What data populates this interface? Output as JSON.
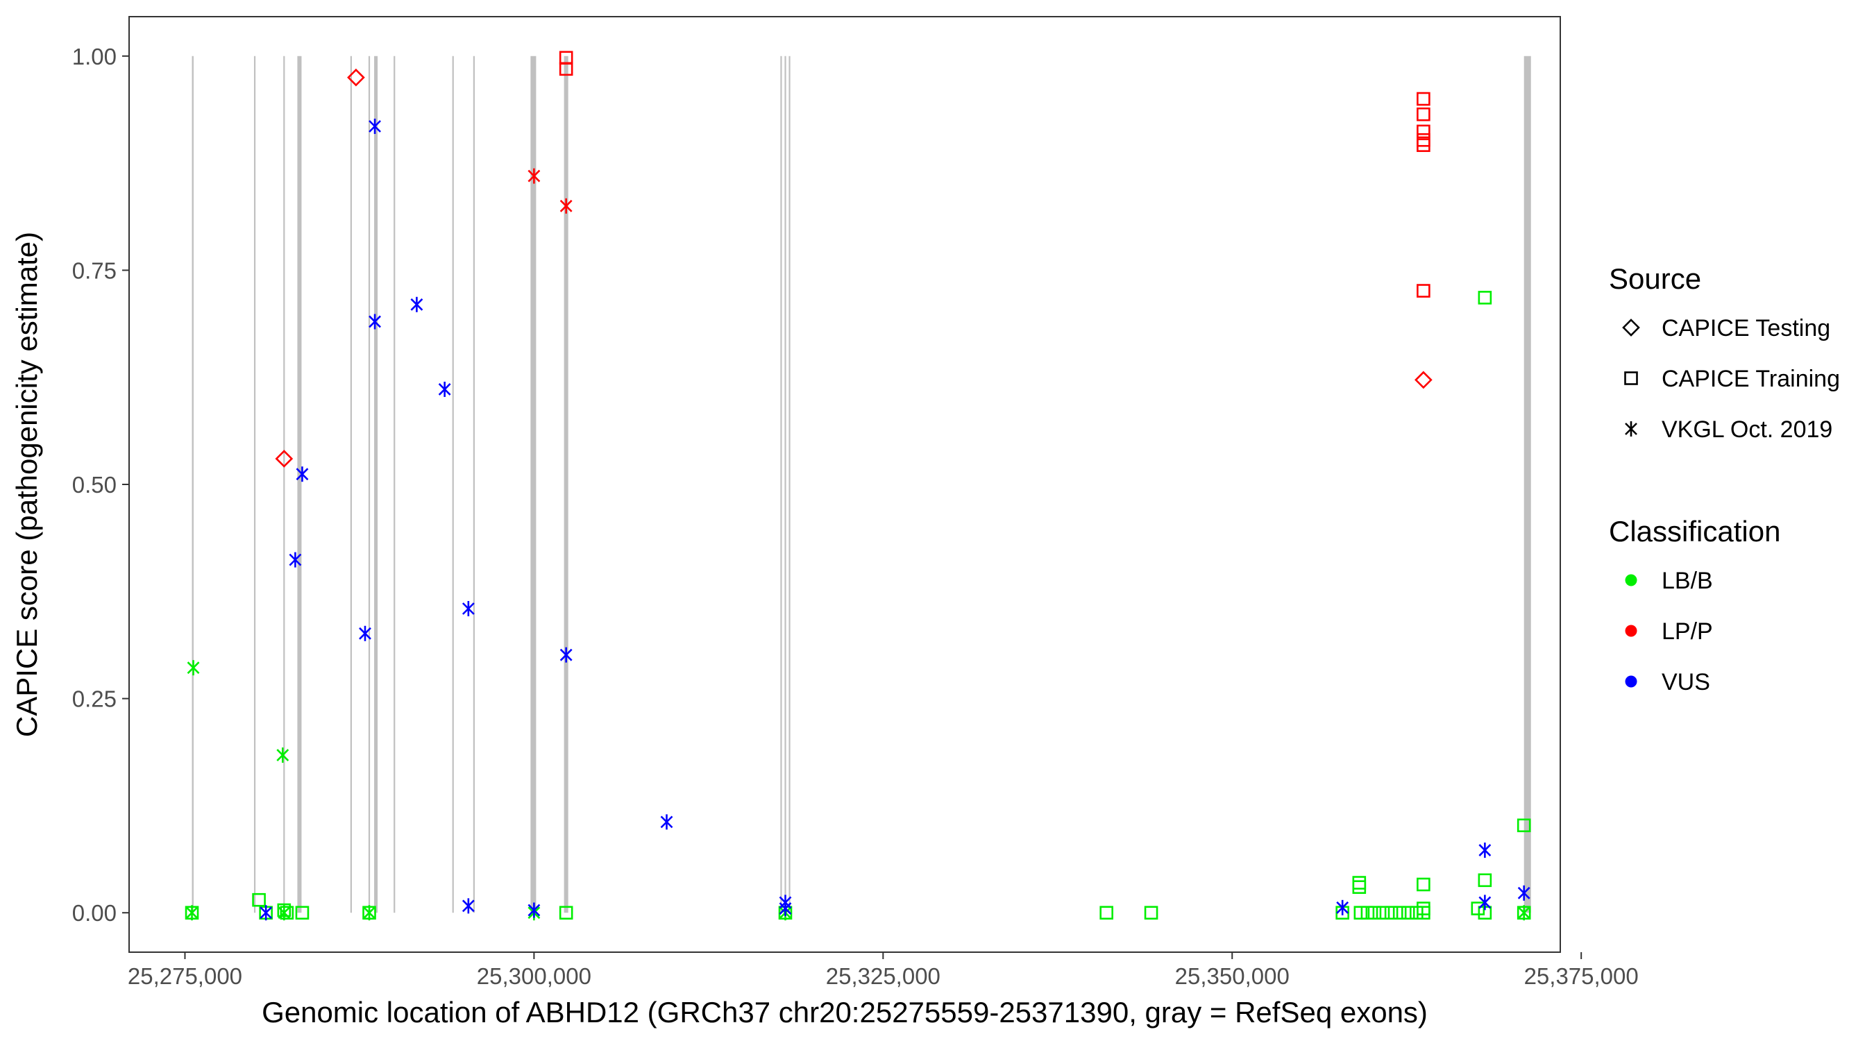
{
  "colors": {
    "LB/B": "#00ee00",
    "LP/P": "#ff0000",
    "VUS": "#0000ff",
    "exon": "#c0c0c0",
    "axis": "#333333",
    "text": "#000000"
  },
  "chart_data": {
    "type": "scatter",
    "xlabel": "Genomic location of ABHD12 (GRCh37 chr20:25275559-25371390, gray = RefSeq exons)",
    "ylabel": "CAPICE score (pathogenicity estimate)",
    "xlim": [
      25271000,
      25373500
    ],
    "ylim": [
      -0.046,
      1.046
    ],
    "x_ticks": [
      25275000,
      25300000,
      25325000,
      25350000,
      25375000
    ],
    "x_tick_labels": [
      "25,275,000",
      "25,300,000",
      "25,325,000",
      "25,350,000",
      "25,375,000"
    ],
    "y_ticks": [
      0,
      0.25,
      0.5,
      0.75,
      1.0
    ],
    "y_tick_labels": [
      "0.00",
      "0.25",
      "0.50",
      "0.75",
      "1.00"
    ],
    "grid": false,
    "legend_position": "right",
    "legend": {
      "source_title": "Source",
      "source_items": [
        {
          "label": "CAPICE Testing",
          "shape": "diamond"
        },
        {
          "label": "CAPICE Training",
          "shape": "square"
        },
        {
          "label": "VKGL Oct. 2019",
          "shape": "asterisk"
        }
      ],
      "class_title": "Classification",
      "class_items": [
        {
          "label": "LB/B",
          "class": "LB/B"
        },
        {
          "label": "LP/P",
          "class": "LP/P"
        },
        {
          "label": "VUS",
          "class": "VUS"
        }
      ]
    },
    "exons": [
      {
        "start": 25275500,
        "end": 25275620
      },
      {
        "start": 25279950,
        "end": 25280050
      },
      {
        "start": 25282050,
        "end": 25282150
      },
      {
        "start": 25283050,
        "end": 25283350
      },
      {
        "start": 25286850,
        "end": 25286950
      },
      {
        "start": 25288150,
        "end": 25288250
      },
      {
        "start": 25288550,
        "end": 25288800
      },
      {
        "start": 25289950,
        "end": 25290050
      },
      {
        "start": 25294150,
        "end": 25294250
      },
      {
        "start": 25295650,
        "end": 25295750
      },
      {
        "start": 25299750,
        "end": 25300150
      },
      {
        "start": 25302150,
        "end": 25302450
      },
      {
        "start": 25317650,
        "end": 25317750
      },
      {
        "start": 25317950,
        "end": 25318050
      },
      {
        "start": 25318250,
        "end": 25318350
      },
      {
        "start": 25370900,
        "end": 25371400
      }
    ],
    "series": [
      {
        "source": "CAPICE Testing",
        "shape": "diamond",
        "points": [
          {
            "x": 25287250,
            "y": 0.975,
            "class": "LP/P"
          },
          {
            "x": 25282100,
            "y": 0.53,
            "class": "LP/P"
          },
          {
            "x": 25363700,
            "y": 0.622,
            "class": "LP/P"
          }
        ]
      },
      {
        "source": "CAPICE Training",
        "shape": "square",
        "points": [
          {
            "x": 25302300,
            "y": 0.998,
            "class": "LP/P"
          },
          {
            "x": 25302300,
            "y": 0.985,
            "class": "LP/P"
          },
          {
            "x": 25363700,
            "y": 0.95,
            "class": "LP/P"
          },
          {
            "x": 25363700,
            "y": 0.932,
            "class": "LP/P"
          },
          {
            "x": 25363700,
            "y": 0.912,
            "class": "LP/P"
          },
          {
            "x": 25363700,
            "y": 0.902,
            "class": "LP/P"
          },
          {
            "x": 25363700,
            "y": 0.896,
            "class": "LP/P"
          },
          {
            "x": 25363700,
            "y": 0.726,
            "class": "LP/P"
          },
          {
            "x": 25368100,
            "y": 0.718,
            "class": "LB/B"
          },
          {
            "x": 25370900,
            "y": 0.102,
            "class": "LB/B"
          },
          {
            "x": 25359100,
            "y": 0.035,
            "class": "LB/B"
          },
          {
            "x": 25359100,
            "y": 0.03,
            "class": "LB/B"
          },
          {
            "x": 25363700,
            "y": 0.033,
            "class": "LB/B"
          },
          {
            "x": 25368100,
            "y": 0.038,
            "class": "LB/B"
          },
          {
            "x": 25280300,
            "y": 0.015,
            "class": "LB/B"
          },
          {
            "x": 25275500,
            "y": 0.0,
            "class": "LB/B"
          },
          {
            "x": 25280800,
            "y": 0.0,
            "class": "LB/B"
          },
          {
            "x": 25282100,
            "y": 0.003,
            "class": "LB/B"
          },
          {
            "x": 25282300,
            "y": 0.0,
            "class": "LB/B"
          },
          {
            "x": 25283400,
            "y": 0.0,
            "class": "LB/B"
          },
          {
            "x": 25288200,
            "y": 0.0,
            "class": "LB/B"
          },
          {
            "x": 25302300,
            "y": 0.0,
            "class": "LB/B"
          },
          {
            "x": 25318000,
            "y": 0.0,
            "class": "LB/B"
          },
          {
            "x": 25341000,
            "y": 0.0,
            "class": "LB/B"
          },
          {
            "x": 25344200,
            "y": 0.0,
            "class": "LB/B"
          },
          {
            "x": 25357900,
            "y": 0.0,
            "class": "LB/B"
          },
          {
            "x": 25359200,
            "y": 0.0,
            "class": "LB/B"
          },
          {
            "x": 25359700,
            "y": 0.0,
            "class": "LB/B"
          },
          {
            "x": 25360200,
            "y": 0.0,
            "class": "LB/B"
          },
          {
            "x": 25360800,
            "y": 0.0,
            "class": "LB/B"
          },
          {
            "x": 25361400,
            "y": 0.0,
            "class": "LB/B"
          },
          {
            "x": 25362000,
            "y": 0.0,
            "class": "LB/B"
          },
          {
            "x": 25362600,
            "y": 0.0,
            "class": "LB/B"
          },
          {
            "x": 25363200,
            "y": 0.0,
            "class": "LB/B"
          },
          {
            "x": 25363700,
            "y": 0.005,
            "class": "LB/B"
          },
          {
            "x": 25363700,
            "y": 0.0,
            "class": "LB/B"
          },
          {
            "x": 25367600,
            "y": 0.005,
            "class": "LB/B"
          },
          {
            "x": 25368100,
            "y": 0.0,
            "class": "LB/B"
          },
          {
            "x": 25370900,
            "y": 0.0,
            "class": "LB/B"
          }
        ]
      },
      {
        "source": "VKGL Oct. 2019",
        "shape": "asterisk",
        "points": [
          {
            "x": 25300000,
            "y": 0.86,
            "class": "LP/P"
          },
          {
            "x": 25302300,
            "y": 0.825,
            "class": "LP/P"
          },
          {
            "x": 25275600,
            "y": 0.286,
            "class": "LB/B"
          },
          {
            "x": 25282000,
            "y": 0.184,
            "class": "LB/B"
          },
          {
            "x": 25275500,
            "y": 0.0,
            "class": "LB/B"
          },
          {
            "x": 25282100,
            "y": 0.0,
            "class": "LB/B"
          },
          {
            "x": 25288200,
            "y": 0.0,
            "class": "LB/B"
          },
          {
            "x": 25300000,
            "y": 0.0,
            "class": "LB/B"
          },
          {
            "x": 25318000,
            "y": 0.0,
            "class": "LB/B"
          },
          {
            "x": 25370900,
            "y": 0.0,
            "class": "LB/B"
          },
          {
            "x": 25288600,
            "y": 0.918,
            "class": "VUS"
          },
          {
            "x": 25288600,
            "y": 0.69,
            "class": "VUS"
          },
          {
            "x": 25291600,
            "y": 0.71,
            "class": "VUS"
          },
          {
            "x": 25293600,
            "y": 0.611,
            "class": "VUS"
          },
          {
            "x": 25283400,
            "y": 0.512,
            "class": "VUS"
          },
          {
            "x": 25282900,
            "y": 0.412,
            "class": "VUS"
          },
          {
            "x": 25295300,
            "y": 0.355,
            "class": "VUS"
          },
          {
            "x": 25287900,
            "y": 0.326,
            "class": "VUS"
          },
          {
            "x": 25302300,
            "y": 0.301,
            "class": "VUS"
          },
          {
            "x": 25309500,
            "y": 0.106,
            "class": "VUS"
          },
          {
            "x": 25368100,
            "y": 0.073,
            "class": "VUS"
          },
          {
            "x": 25370900,
            "y": 0.023,
            "class": "VUS"
          },
          {
            "x": 25318000,
            "y": 0.012,
            "class": "VUS"
          },
          {
            "x": 25368100,
            "y": 0.012,
            "class": "VUS"
          },
          {
            "x": 25295300,
            "y": 0.008,
            "class": "VUS"
          },
          {
            "x": 25357900,
            "y": 0.006,
            "class": "VUS"
          },
          {
            "x": 25318000,
            "y": 0.005,
            "class": "VUS"
          },
          {
            "x": 25280800,
            "y": 0.0,
            "class": "VUS"
          },
          {
            "x": 25300000,
            "y": 0.003,
            "class": "VUS"
          }
        ]
      }
    ]
  }
}
